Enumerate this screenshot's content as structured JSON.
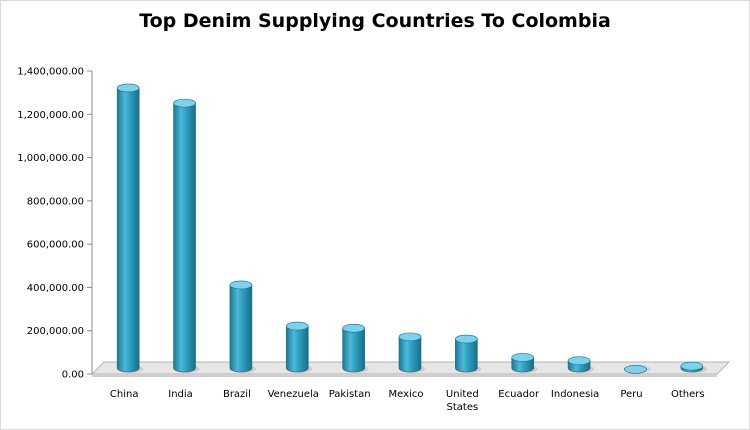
{
  "chart_data": {
    "type": "bar",
    "title": "Top Denim Supplying Countries To Colombia",
    "xlabel": "",
    "ylabel": "",
    "categories": [
      "China",
      "India",
      "Brazil",
      "Venezuela",
      "Pakistan",
      "Mexico",
      "United States",
      "Ecuador",
      "Indonesia",
      "Peru",
      "Others"
    ],
    "values": [
      1340000,
      1270000,
      430000,
      240000,
      230000,
      190000,
      180000,
      95000,
      80000,
      40000,
      55000
    ],
    "y_ticks": [
      "0.00",
      "200,000.00",
      "400,000.00",
      "600,000.00",
      "800,000.00",
      "1,000,000.00",
      "1,200,000.00",
      "1,400,000.00"
    ],
    "ylim": [
      0,
      1400000
    ],
    "grid": false,
    "legend": "none",
    "colors": {
      "bar": "#31a2c4",
      "bar_dark": "#1b7893",
      "bar_light": "#7fd0e8",
      "floor": "#e6e6e6"
    }
  }
}
